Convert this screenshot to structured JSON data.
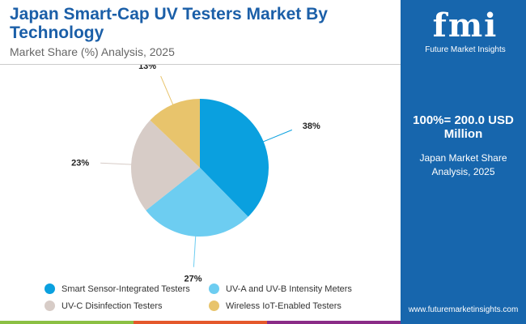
{
  "header": {
    "title": "Japan Smart-Cap UV Testers Market By Technology",
    "subtitle": "Market Share (%) Analysis, 2025"
  },
  "side": {
    "logo_mark": "fmi",
    "logo_name": "Future Market Insights",
    "total": "100%= 200.0 USD Million",
    "region": "Japan Market Share Analysis, 2025",
    "url": "www.futuremarketinsights.com"
  },
  "chart_data": {
    "type": "pie",
    "title": "Japan Smart-Cap UV Testers Market By Technology",
    "categories": [
      "Smart Sensor-Integrated Testers",
      "UV-A and UV-B Intensity Meters",
      "UV-C Disinfection Testers",
      "Wireless IoT-Enabled Testers"
    ],
    "values": [
      38,
      27,
      23,
      13
    ],
    "labels": [
      "38%",
      "27%",
      "23%",
      "13%"
    ],
    "colors": [
      "#0aa0df",
      "#6dcdf1",
      "#d7ccc7",
      "#e8c46c"
    ],
    "legend": "bottom"
  }
}
